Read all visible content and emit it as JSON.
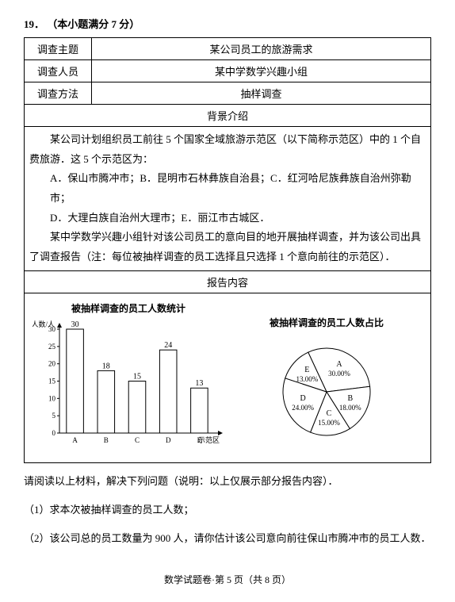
{
  "question_number": "19．",
  "question_score": "（本小题满分 7 分）",
  "table": {
    "row1_label": "调查主题",
    "row1_value": "某公司员工的旅游需求",
    "row2_label": "调查人员",
    "row2_value": "某中学数学兴趣小组",
    "row3_label": "调查方法",
    "row3_value": "抽样调查",
    "bg_header": "背景介绍",
    "bg_p1": "某公司计划组织员工前往 5 个国家全域旅游示范区（以下简称示范区）中的 1 个自费旅游．这 5 个示范区为：",
    "bg_opts1": "A．保山市腾冲市；B．昆明市石林彝族自治县；C．红河哈尼族彝族自治州弥勒市；",
    "bg_opts2": "D．大理白族自治州大理市；E．丽江市古城区．",
    "bg_p2": "某中学数学兴趣小组针对该公司员工的意向目的地开展抽样调查，并为该公司出具了调查报告（注：每位被抽样调查的员工选择且只选择 1 个意向前往的示范区）．",
    "report_header": "报告内容"
  },
  "bar_chart": {
    "title": "被抽样调查的员工人数统计",
    "y_label": "人数/人",
    "x_label": "示范区",
    "categories": [
      "A",
      "B",
      "C",
      "D",
      "E"
    ],
    "values": [
      30,
      18,
      15,
      24,
      13
    ],
    "y_max": 30,
    "y_ticks": [
      0,
      5,
      10,
      15,
      20,
      25,
      30
    ],
    "bar_color": "#ffffff",
    "bar_border": "#000000",
    "axis_color": "#000000",
    "value_fontsize": 10,
    "tick_fontsize": 9
  },
  "pie_chart": {
    "title": "被抽样调查的员工人数占比",
    "slices": [
      {
        "label": "A",
        "pct": 30.0,
        "text": "30.00%"
      },
      {
        "label": "B",
        "pct": 18.0,
        "text": "18.00%"
      },
      {
        "label": "C",
        "pct": 15.0,
        "text": "15.00%"
      },
      {
        "label": "D",
        "pct": 24.0,
        "text": "24.00%"
      },
      {
        "label": "E",
        "pct": 13.0,
        "text": "13.00%"
      }
    ],
    "border_color": "#000000",
    "fill_color": "#ffffff",
    "label_fontsize": 10
  },
  "below": {
    "instr": "请阅读以上材料，解决下列问题（说明：以上仅展示部分报告内容）．",
    "q1": "（1）求本次被抽样调查的员工人数；",
    "q2": "（2）该公司总的员工数量为 900 人，请你估计该公司意向前往保山市腾冲市的员工人数．"
  },
  "footer": "数学试题卷·第 5 页（共 8 页）"
}
